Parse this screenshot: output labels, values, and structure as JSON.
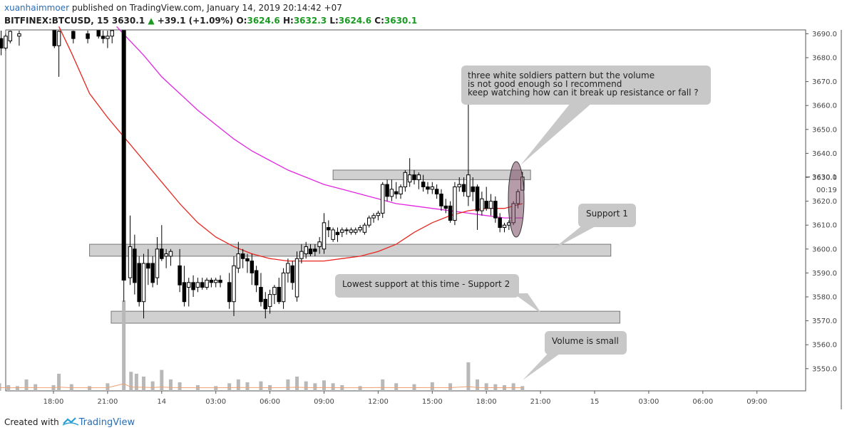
{
  "header": {
    "author": "xuanhaimmoer",
    "published_text": "published on TradingView.com, January 14, 2019 20:14:42 +07",
    "symbol": "BITFINEX:BTCUSD, 15",
    "last": "3630.1",
    "arrow": "▲",
    "change": "+39.1 (+1.09%)",
    "o_label": "O:",
    "o_value": "3624.6",
    "h_label": "H:",
    "h_value": "3632.3",
    "l_label": "L:",
    "l_value": "3624.6",
    "c_label": "C:",
    "c_value": "3630.1"
  },
  "footer": {
    "created_with": "Created with",
    "brand": "TradingView"
  },
  "colors": {
    "up_text": "#1a9a22",
    "ma_fast": "#e8261f",
    "ma_slow": "#e027e0",
    "zone_fill": "#c8c8c8",
    "highlight": "#7a4a62"
  },
  "chart_data": {
    "type": "candlestick",
    "price_axis": {
      "min": 3540,
      "max": 3693,
      "ticks": [
        3550,
        3560,
        3570,
        3580,
        3590,
        3600,
        3610,
        3620,
        3630,
        3640,
        3650,
        3660,
        3670,
        3680,
        3690
      ]
    },
    "last_price_label": "3630.1",
    "countdown_label": "00:19",
    "time_axis": {
      "labels": [
        "18:00",
        "21:00",
        "14",
        "03:00",
        "06:00",
        "09:00",
        "12:00",
        "15:00",
        "18:00",
        "21:00",
        "15",
        "03:00",
        "06:00",
        "09:00"
      ],
      "label_hours": [
        18,
        21,
        24,
        27,
        30,
        33,
        36,
        39,
        42,
        45,
        48,
        51,
        54,
        57
      ]
    },
    "candles": [
      {
        "t": 15.1,
        "o": 3688,
        "h": 3692,
        "l": 3681,
        "c": 3684
      },
      {
        "t": 15.35,
        "o": 3684,
        "h": 3690,
        "l": 3683,
        "c": 3689
      },
      {
        "t": 15.6,
        "o": 3687,
        "h": 3693,
        "l": 3686,
        "c": 3691
      },
      {
        "t": 16.1,
        "o": 3689,
        "h": 3693,
        "l": 3685,
        "c": 3690
      },
      {
        "t": 18.05,
        "o": 3693,
        "h": 3693,
        "l": 3684,
        "c": 3685
      },
      {
        "t": 18.3,
        "o": 3685,
        "h": 3693,
        "l": 3672,
        "c": 3691
      },
      {
        "t": 19.1,
        "o": 3691,
        "h": 3693,
        "l": 3686,
        "c": 3688
      },
      {
        "t": 19.9,
        "o": 3690,
        "h": 3693,
        "l": 3686,
        "c": 3688
      },
      {
        "t": 20.5,
        "o": 3692,
        "h": 3693,
        "l": 3688,
        "c": 3689
      },
      {
        "t": 20.75,
        "o": 3689,
        "h": 3693,
        "l": 3686,
        "c": 3688
      },
      {
        "t": 21.0,
        "o": 3688,
        "h": 3693,
        "l": 3684,
        "c": 3689
      },
      {
        "t": 21.25,
        "o": 3689,
        "h": 3693,
        "l": 3686,
        "c": 3692
      },
      {
        "t": 21.9,
        "o": 3693,
        "h": 3693,
        "l": 3578,
        "c": 3587
      },
      {
        "t": 22.25,
        "o": 3588,
        "h": 3614,
        "l": 3585,
        "c": 3601
      },
      {
        "t": 22.5,
        "o": 3600,
        "h": 3606,
        "l": 3581,
        "c": 3586
      },
      {
        "t": 22.75,
        "o": 3594,
        "h": 3597,
        "l": 3576,
        "c": 3578
      },
      {
        "t": 23.0,
        "o": 3578,
        "h": 3598,
        "l": 3571,
        "c": 3594
      },
      {
        "t": 23.25,
        "o": 3594,
        "h": 3600,
        "l": 3585,
        "c": 3592
      },
      {
        "t": 23.5,
        "o": 3594,
        "h": 3597,
        "l": 3584,
        "c": 3586
      },
      {
        "t": 23.75,
        "o": 3588,
        "h": 3605,
        "l": 3585,
        "c": 3600
      },
      {
        "t": 24.0,
        "o": 3600,
        "h": 3610,
        "l": 3595,
        "c": 3596
      },
      {
        "t": 24.25,
        "o": 3597,
        "h": 3600,
        "l": 3592,
        "c": 3598
      },
      {
        "t": 24.5,
        "o": 3597,
        "h": 3600,
        "l": 3593,
        "c": 3599
      },
      {
        "t": 25.0,
        "o": 3593,
        "h": 3600,
        "l": 3582,
        "c": 3585
      },
      {
        "t": 25.25,
        "o": 3586,
        "h": 3593,
        "l": 3576,
        "c": 3578
      },
      {
        "t": 25.5,
        "o": 3584,
        "h": 3588,
        "l": 3576,
        "c": 3586
      },
      {
        "t": 25.75,
        "o": 3586,
        "h": 3589,
        "l": 3580,
        "c": 3583
      },
      {
        "t": 26.0,
        "o": 3584,
        "h": 3588,
        "l": 3582,
        "c": 3586
      },
      {
        "t": 26.25,
        "o": 3586,
        "h": 3588,
        "l": 3583,
        "c": 3584
      },
      {
        "t": 26.5,
        "o": 3584,
        "h": 3588,
        "l": 3583,
        "c": 3587
      },
      {
        "t": 26.75,
        "o": 3587,
        "h": 3588,
        "l": 3584,
        "c": 3586
      },
      {
        "t": 27.0,
        "o": 3586,
        "h": 3588,
        "l": 3584,
        "c": 3587
      },
      {
        "t": 27.25,
        "o": 3587,
        "h": 3589,
        "l": 3584,
        "c": 3586
      },
      {
        "t": 27.75,
        "o": 3586,
        "h": 3590,
        "l": 3575,
        "c": 3578
      },
      {
        "t": 28.0,
        "o": 3578,
        "h": 3597,
        "l": 3572,
        "c": 3593
      },
      {
        "t": 28.25,
        "o": 3592,
        "h": 3603,
        "l": 3590,
        "c": 3598
      },
      {
        "t": 28.5,
        "o": 3598,
        "h": 3600,
        "l": 3592,
        "c": 3596
      },
      {
        "t": 28.75,
        "o": 3596,
        "h": 3598,
        "l": 3590,
        "c": 3595
      },
      {
        "t": 29.0,
        "o": 3595,
        "h": 3598,
        "l": 3585,
        "c": 3590
      },
      {
        "t": 29.25,
        "o": 3591,
        "h": 3593,
        "l": 3582,
        "c": 3585
      },
      {
        "t": 29.5,
        "o": 3584,
        "h": 3590,
        "l": 3576,
        "c": 3578
      },
      {
        "t": 29.75,
        "o": 3579,
        "h": 3582,
        "l": 3571,
        "c": 3575
      },
      {
        "t": 30.0,
        "o": 3576,
        "h": 3583,
        "l": 3573,
        "c": 3581
      },
      {
        "t": 30.25,
        "o": 3581,
        "h": 3585,
        "l": 3577,
        "c": 3584
      },
      {
        "t": 30.5,
        "o": 3584,
        "h": 3588,
        "l": 3577,
        "c": 3578
      },
      {
        "t": 30.75,
        "o": 3578,
        "h": 3592,
        "l": 3575,
        "c": 3590
      },
      {
        "t": 31.0,
        "o": 3590,
        "h": 3596,
        "l": 3586,
        "c": 3594
      },
      {
        "t": 31.25,
        "o": 3593,
        "h": 3595,
        "l": 3583,
        "c": 3586
      },
      {
        "t": 31.5,
        "o": 3580,
        "h": 3599,
        "l": 3578,
        "c": 3596
      },
      {
        "t": 31.75,
        "o": 3596,
        "h": 3602,
        "l": 3594,
        "c": 3599
      },
      {
        "t": 32.0,
        "o": 3598,
        "h": 3603,
        "l": 3596,
        "c": 3601
      },
      {
        "t": 32.25,
        "o": 3600,
        "h": 3602,
        "l": 3597,
        "c": 3598
      },
      {
        "t": 32.5,
        "o": 3600,
        "h": 3602,
        "l": 3597,
        "c": 3599
      },
      {
        "t": 32.75,
        "o": 3601,
        "h": 3605,
        "l": 3598,
        "c": 3603
      },
      {
        "t": 33.0,
        "o": 3600,
        "h": 3615,
        "l": 3598,
        "c": 3611
      },
      {
        "t": 33.25,
        "o": 3609,
        "h": 3612,
        "l": 3605,
        "c": 3608
      },
      {
        "t": 33.5,
        "o": 3604,
        "h": 3609,
        "l": 3603,
        "c": 3608
      },
      {
        "t": 33.75,
        "o": 3607,
        "h": 3609,
        "l": 3603,
        "c": 3606
      },
      {
        "t": 34.0,
        "o": 3607,
        "h": 3609,
        "l": 3605,
        "c": 3608
      },
      {
        "t": 34.25,
        "o": 3608,
        "h": 3609,
        "l": 3606,
        "c": 3608
      },
      {
        "t": 34.5,
        "o": 3607,
        "h": 3609,
        "l": 3606,
        "c": 3608
      },
      {
        "t": 34.75,
        "o": 3607,
        "h": 3609,
        "l": 3606,
        "c": 3608
      },
      {
        "t": 35.0,
        "o": 3608,
        "h": 3610,
        "l": 3607,
        "c": 3609
      },
      {
        "t": 35.25,
        "o": 3607,
        "h": 3611,
        "l": 3606,
        "c": 3610
      },
      {
        "t": 35.5,
        "o": 3610,
        "h": 3614,
        "l": 3609,
        "c": 3613
      },
      {
        "t": 35.75,
        "o": 3613,
        "h": 3615,
        "l": 3611,
        "c": 3614
      },
      {
        "t": 36.0,
        "o": 3614,
        "h": 3616,
        "l": 3612,
        "c": 3615
      },
      {
        "t": 36.25,
        "o": 3615,
        "h": 3628,
        "l": 3613,
        "c": 3627
      },
      {
        "t": 36.5,
        "o": 3627,
        "h": 3629,
        "l": 3620,
        "c": 3622
      },
      {
        "t": 36.75,
        "o": 3622,
        "h": 3629,
        "l": 3620,
        "c": 3625
      },
      {
        "t": 37.0,
        "o": 3624,
        "h": 3628,
        "l": 3621,
        "c": 3623
      },
      {
        "t": 37.25,
        "o": 3623,
        "h": 3627,
        "l": 3621,
        "c": 3626
      },
      {
        "t": 37.5,
        "o": 3626,
        "h": 3633,
        "l": 3624,
        "c": 3632
      },
      {
        "t": 37.75,
        "o": 3628,
        "h": 3638,
        "l": 3626,
        "c": 3631
      },
      {
        "t": 38.0,
        "o": 3631,
        "h": 3633,
        "l": 3627,
        "c": 3629
      },
      {
        "t": 38.25,
        "o": 3629,
        "h": 3632,
        "l": 3625,
        "c": 3631
      },
      {
        "t": 38.5,
        "o": 3628,
        "h": 3631,
        "l": 3624,
        "c": 3626
      },
      {
        "t": 38.75,
        "o": 3626,
        "h": 3628,
        "l": 3623,
        "c": 3625
      },
      {
        "t": 39.0,
        "o": 3625,
        "h": 3628,
        "l": 3623,
        "c": 3626
      },
      {
        "t": 39.25,
        "o": 3625,
        "h": 3627,
        "l": 3621,
        "c": 3623
      },
      {
        "t": 39.5,
        "o": 3623,
        "h": 3625,
        "l": 3616,
        "c": 3618
      },
      {
        "t": 39.75,
        "o": 3618,
        "h": 3621,
        "l": 3615,
        "c": 3617
      },
      {
        "t": 40.0,
        "o": 3618,
        "h": 3620,
        "l": 3611,
        "c": 3612
      },
      {
        "t": 40.25,
        "o": 3612,
        "h": 3628,
        "l": 3610,
        "c": 3626
      },
      {
        "t": 40.5,
        "o": 3626,
        "h": 3630,
        "l": 3624,
        "c": 3627
      },
      {
        "t": 40.75,
        "o": 3627,
        "h": 3630,
        "l": 3622,
        "c": 3624
      },
      {
        "t": 41.0,
        "o": 3622,
        "h": 3667,
        "l": 3618,
        "c": 3631
      },
      {
        "t": 41.25,
        "o": 3626,
        "h": 3630,
        "l": 3620,
        "c": 3624
      },
      {
        "t": 41.5,
        "o": 3626,
        "h": 3627,
        "l": 3608,
        "c": 3616
      },
      {
        "t": 41.75,
        "o": 3616,
        "h": 3624,
        "l": 3614,
        "c": 3621
      },
      {
        "t": 42.0,
        "o": 3620,
        "h": 3626,
        "l": 3616,
        "c": 3617
      },
      {
        "t": 42.25,
        "o": 3617,
        "h": 3623,
        "l": 3614,
        "c": 3620
      },
      {
        "t": 42.5,
        "o": 3620,
        "h": 3622,
        "l": 3611,
        "c": 3613
      },
      {
        "t": 42.75,
        "o": 3613,
        "h": 3615,
        "l": 3607,
        "c": 3609
      },
      {
        "t": 43.0,
        "o": 3609,
        "h": 3611,
        "l": 3607,
        "c": 3610
      },
      {
        "t": 43.25,
        "o": 3610,
        "h": 3612,
        "l": 3608,
        "c": 3611
      },
      {
        "t": 43.5,
        "o": 3611,
        "h": 3620,
        "l": 3610,
        "c": 3619
      },
      {
        "t": 43.75,
        "o": 3619,
        "h": 3625,
        "l": 3617,
        "c": 3624
      },
      {
        "t": 44.0,
        "o": 3624.6,
        "h": 3632.3,
        "l": 3624.6,
        "c": 3630.1
      }
    ],
    "ma_fast": [
      [
        18.3,
        3693
      ],
      [
        19.0,
        3682
      ],
      [
        20.0,
        3665
      ],
      [
        21.0,
        3655
      ],
      [
        22.0,
        3646
      ],
      [
        23.0,
        3637
      ],
      [
        24.0,
        3628
      ],
      [
        25.0,
        3619
      ],
      [
        26.0,
        3611
      ],
      [
        27.0,
        3605
      ],
      [
        28.0,
        3601
      ],
      [
        29.0,
        3598
      ],
      [
        30.0,
        3596
      ],
      [
        31.0,
        3595
      ],
      [
        32.0,
        3595
      ],
      [
        33.0,
        3595
      ],
      [
        34.0,
        3596
      ],
      [
        35.0,
        3597
      ],
      [
        36.0,
        3599
      ],
      [
        37.0,
        3602
      ],
      [
        38.0,
        3607
      ],
      [
        39.0,
        3611
      ],
      [
        40.0,
        3614
      ],
      [
        41.0,
        3616
      ],
      [
        42.0,
        3617
      ],
      [
        43.0,
        3617
      ],
      [
        44.0,
        3619
      ]
    ],
    "ma_slow": [
      [
        21.5,
        3693
      ],
      [
        22.0,
        3689
      ],
      [
        23.0,
        3681
      ],
      [
        24.0,
        3672
      ],
      [
        25.0,
        3665
      ],
      [
        26.0,
        3658
      ],
      [
        27.0,
        3652
      ],
      [
        28.0,
        3646
      ],
      [
        29.0,
        3641
      ],
      [
        30.0,
        3637
      ],
      [
        31.0,
        3633
      ],
      [
        32.0,
        3630
      ],
      [
        33.0,
        3627
      ],
      [
        34.0,
        3625
      ],
      [
        35.0,
        3623
      ],
      [
        36.0,
        3621
      ],
      [
        37.0,
        3619
      ],
      [
        38.0,
        3618
      ],
      [
        39.0,
        3617
      ],
      [
        40.0,
        3616
      ],
      [
        41.0,
        3615
      ],
      [
        42.0,
        3614
      ],
      [
        43.0,
        3613
      ],
      [
        44.0,
        3613
      ]
    ],
    "volume": {
      "bars": [
        [
          15.0,
          8
        ],
        [
          15.5,
          6
        ],
        [
          16.0,
          5
        ],
        [
          16.5,
          12
        ],
        [
          17.0,
          7
        ],
        [
          18.0,
          6
        ],
        [
          18.3,
          18
        ],
        [
          19.0,
          7
        ],
        [
          20.0,
          5
        ],
        [
          21.0,
          8
        ],
        [
          21.9,
          95
        ],
        [
          22.3,
          20
        ],
        [
          22.6,
          18
        ],
        [
          23.0,
          15
        ],
        [
          23.5,
          10
        ],
        [
          24.0,
          22
        ],
        [
          24.5,
          12
        ],
        [
          25.0,
          9
        ],
        [
          26.0,
          6
        ],
        [
          27.0,
          5
        ],
        [
          27.75,
          8
        ],
        [
          28.25,
          12
        ],
        [
          28.75,
          9
        ],
        [
          29.5,
          10
        ],
        [
          30.0,
          6
        ],
        [
          31.0,
          12
        ],
        [
          31.5,
          15
        ],
        [
          32.0,
          10
        ],
        [
          32.5,
          8
        ],
        [
          33.0,
          11
        ],
        [
          33.5,
          8
        ],
        [
          34.0,
          6
        ],
        [
          35.0,
          5
        ],
        [
          36.25,
          12
        ],
        [
          37.0,
          8
        ],
        [
          38.0,
          7
        ],
        [
          39.0,
          9
        ],
        [
          40.0,
          8
        ],
        [
          41.0,
          30
        ],
        [
          41.5,
          12
        ],
        [
          42.0,
          8
        ],
        [
          42.5,
          7
        ],
        [
          43.0,
          6
        ],
        [
          43.5,
          8
        ],
        [
          44.0,
          5
        ]
      ],
      "max": 95
    },
    "zones": [
      {
        "label": "resistance",
        "from_h": 33.5,
        "to_h": 44.45,
        "low": 3629,
        "high": 3633
      },
      {
        "label": "Support 1",
        "from_h": 20.0,
        "to_h": 48.9,
        "low": 3597,
        "high": 3602
      },
      {
        "label": "Support 2",
        "from_h": 21.2,
        "to_h": 49.4,
        "low": 3569,
        "high": 3574
      }
    ],
    "annotations": [
      {
        "lines": [
          "three white soldiers pattern but the volume",
          "is not good enough so I recommend",
          " keep watching how can it break up resistance or fall ?"
        ]
      },
      {
        "lines": [
          "Support 1"
        ]
      },
      {
        "lines": [
          "Lowest support at this time - Support 2"
        ]
      },
      {
        "lines": [
          "Volume is small"
        ]
      }
    ]
  }
}
